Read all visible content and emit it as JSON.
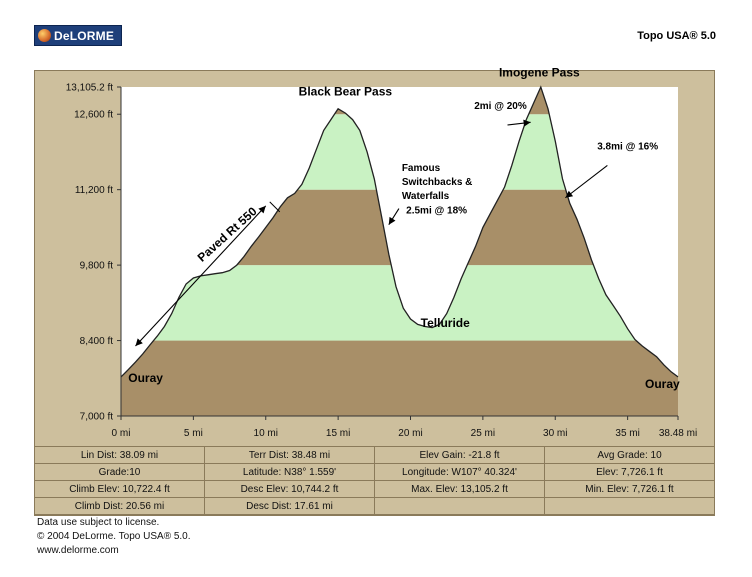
{
  "header": {
    "logo_text": "DeLORME",
    "product": "Topo USA® 5.0"
  },
  "chart_data": {
    "type": "area",
    "title": "",
    "xlabel": "",
    "ylabel": "",
    "x_unit": "mi",
    "ylim": [
      7000,
      13105.2
    ],
    "xlim": [
      0,
      38.48
    ],
    "y_ticks": [
      "13,105.2 ft",
      "12,600 ft",
      "11,200 ft",
      "9,800 ft",
      "8,400 ft",
      "7,000 ft"
    ],
    "y_tick_values": [
      13105.2,
      12600,
      11200,
      9800,
      8400,
      7000
    ],
    "x_ticks": [
      "0 mi",
      "5 mi",
      "10 mi",
      "15 mi",
      "20 mi",
      "25 mi",
      "30 mi",
      "35 mi",
      "38.48 mi"
    ],
    "x_tick_values": [
      0,
      5,
      10,
      15,
      20,
      25,
      30,
      35,
      38.48
    ],
    "band_colors": {
      "brown": "#a88f68",
      "green": "#c9f2c3"
    },
    "profile": {
      "x": [
        0,
        0.5,
        1,
        1.5,
        2,
        2.5,
        3,
        3.5,
        4,
        4.5,
        5,
        5.5,
        6,
        6.5,
        7,
        7.5,
        8,
        8.5,
        9,
        9.5,
        10,
        10.5,
        11,
        11.5,
        12,
        12.5,
        13,
        13.5,
        14,
        14.5,
        15,
        15.5,
        16,
        16.5,
        17,
        17.5,
        18,
        18.5,
        19,
        19.5,
        20,
        20.5,
        21,
        21.5,
        22,
        22.5,
        23,
        23.5,
        24,
        24.5,
        25,
        25.5,
        26,
        26.5,
        27,
        27.5,
        28,
        28.5,
        29,
        29.5,
        30,
        30.5,
        31,
        31.5,
        32,
        32.5,
        33,
        33.5,
        34,
        34.5,
        35,
        35.5,
        36,
        36.5,
        37,
        37.5,
        38,
        38.48
      ],
      "y": [
        7726,
        7860,
        8000,
        8150,
        8320,
        8480,
        8660,
        8900,
        9200,
        9450,
        9560,
        9600,
        9620,
        9640,
        9660,
        9700,
        9800,
        9960,
        10150,
        10320,
        10500,
        10680,
        10880,
        11050,
        11130,
        11300,
        11600,
        11950,
        12300,
        12500,
        12700,
        12620,
        12500,
        12300,
        11900,
        11400,
        10700,
        10000,
        9400,
        9000,
        8800,
        8700,
        8660,
        8640,
        8700,
        8900,
        9200,
        9550,
        9850,
        10150,
        10500,
        10750,
        11000,
        11250,
        11650,
        12100,
        12500,
        12800,
        13105,
        12700,
        12100,
        11400,
        10950,
        10650,
        10300,
        9900,
        9550,
        9250,
        9050,
        8850,
        8620,
        8420,
        8300,
        8200,
        8100,
        7950,
        7820,
        7726
      ]
    },
    "annotations": [
      {
        "text": "Black Bear Pass",
        "x": 15.5,
        "y": 12950
      },
      {
        "text": "Imogene Pass",
        "x": 28.9,
        "y": 13300
      },
      {
        "text": "2mi @ 20%",
        "x": 24.4,
        "y": 12700
      },
      {
        "text": "3.8mi @ 16%",
        "x": 32.9,
        "y": 11950
      },
      {
        "text": "Famous",
        "x": 19.4,
        "y": 11550
      },
      {
        "text": "Switchbacks &",
        "x": 19.4,
        "y": 11290
      },
      {
        "text": "Waterfalls",
        "x": 19.4,
        "y": 11030
      },
      {
        "text": "2.5mi @ 18%",
        "x": 19.7,
        "y": 10760
      },
      {
        "text": "Paved Rt 550",
        "x": 5.6,
        "y": 9850
      },
      {
        "text": "Telluride",
        "x": 22.4,
        "y": 8650
      },
      {
        "text": "Ouray",
        "x": 0.5,
        "y": 7630
      },
      {
        "text": "Ouray",
        "x": 36.2,
        "y": 7520
      }
    ],
    "arrows": [
      {
        "from": [
          10.0,
          10900
        ],
        "to": [
          1.0,
          8300
        ]
      },
      {
        "from": [
          26.7,
          12400
        ],
        "to": [
          28.3,
          12450
        ]
      },
      {
        "from": [
          33.6,
          11650
        ],
        "to": [
          30.7,
          11050
        ]
      },
      {
        "from": [
          19.2,
          10850
        ],
        "to": [
          18.5,
          10550
        ]
      }
    ]
  },
  "stats": {
    "rows": [
      [
        "Lin Dist: 38.09 mi",
        "Terr Dist: 38.48 mi",
        "Elev Gain: -21.8 ft",
        "Avg Grade: 10"
      ],
      [
        "Grade:10",
        "Latitude: N38° 1.559'",
        "Longitude: W107° 40.324'",
        "Elev: 7,726.1 ft"
      ],
      [
        "Climb Elev: 10,722.4 ft",
        "Desc Elev: 10,744.2 ft",
        "Max. Elev: 13,105.2 ft",
        "Min. Elev: 7,726.1 ft"
      ],
      [
        "Climb Dist: 20.56 mi",
        "Desc Dist: 17.61 mi",
        "",
        ""
      ]
    ]
  },
  "footer": {
    "license": "Data use subject to license.",
    "copyright": "© 2004 DeLorme. Topo USA® 5.0.",
    "url": "www.delorme.com"
  }
}
